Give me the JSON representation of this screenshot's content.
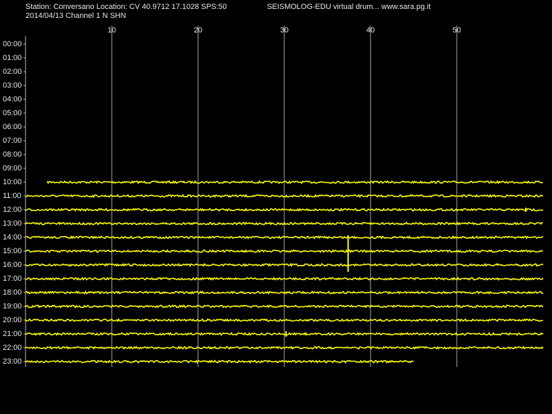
{
  "chart_data": {
    "type": "drum",
    "title": "Station: Conversano Location: CV 40.9712 17.1028 SPS:50",
    "subtitle": "SEISMOLOG-EDU virtual drum... www.sara.pg.it",
    "date_label": "2014/04/13  Channel 1 N SHN",
    "color": "#ffff00",
    "grid": true,
    "xlim": [
      0,
      60
    ],
    "xticks": [
      10,
      20,
      30,
      40,
      50
    ],
    "ylim": [
      -0.6,
      23.4
    ],
    "yticks": [
      {
        "value": 0,
        "label": "00:00"
      },
      {
        "value": 1,
        "label": "01:00"
      },
      {
        "value": 2,
        "label": "02:00"
      },
      {
        "value": 3,
        "label": "03:00"
      },
      {
        "value": 4,
        "label": "04:00"
      },
      {
        "value": 5,
        "label": "05:00"
      },
      {
        "value": 6,
        "label": "06:00"
      },
      {
        "value": 7,
        "label": "07:00"
      },
      {
        "value": 8,
        "label": "08:00"
      },
      {
        "value": 9,
        "label": "09:00"
      },
      {
        "value": 10,
        "label": "10:00"
      },
      {
        "value": 11,
        "label": "11:00"
      },
      {
        "value": 12,
        "label": "12:00"
      },
      {
        "value": 13,
        "label": "13:00"
      },
      {
        "value": 14,
        "label": "14:00"
      },
      {
        "value": 15,
        "label": "15:00"
      },
      {
        "value": 16,
        "label": "16:00"
      },
      {
        "value": 17,
        "label": "17:00"
      },
      {
        "value": 18,
        "label": "18:00"
      },
      {
        "value": 19,
        "label": "19:00"
      },
      {
        "value": 20,
        "label": "20:00"
      },
      {
        "value": 21,
        "label": "21:00"
      },
      {
        "value": 22,
        "label": "22:00"
      },
      {
        "value": 23,
        "label": "23:00"
      }
    ],
    "traces": [
      {
        "hour": 10,
        "start": 2.5,
        "end": 60
      },
      {
        "hour": 11,
        "start": 0,
        "end": 60
      },
      {
        "hour": 12,
        "start": 0,
        "end": 60
      },
      {
        "hour": 13,
        "start": 0,
        "end": 60
      },
      {
        "hour": 14,
        "start": 0,
        "end": 60
      },
      {
        "hour": 15,
        "start": 0,
        "end": 60
      },
      {
        "hour": 16,
        "start": 0,
        "end": 60
      },
      {
        "hour": 17,
        "start": 0,
        "end": 60
      },
      {
        "hour": 18,
        "start": 0,
        "end": 60
      },
      {
        "hour": 19,
        "start": 0,
        "end": 60
      },
      {
        "hour": 20,
        "start": 0,
        "end": 60
      },
      {
        "hour": 21,
        "start": 0,
        "end": 60
      },
      {
        "hour": 22,
        "start": 0,
        "end": 60
      },
      {
        "hour": 23,
        "start": 0,
        "end": 45
      }
    ],
    "events": [
      {
        "x": 37.4,
        "y": [
          13.85,
          16.5
        ]
      },
      {
        "x": 58,
        "y": [
          11.85,
          12.15
        ]
      },
      {
        "x": 30.2,
        "y": [
          20.8,
          21.2
        ]
      },
      {
        "x": 32.5,
        "y": [
          20.9,
          21.1
        ]
      }
    ]
  }
}
